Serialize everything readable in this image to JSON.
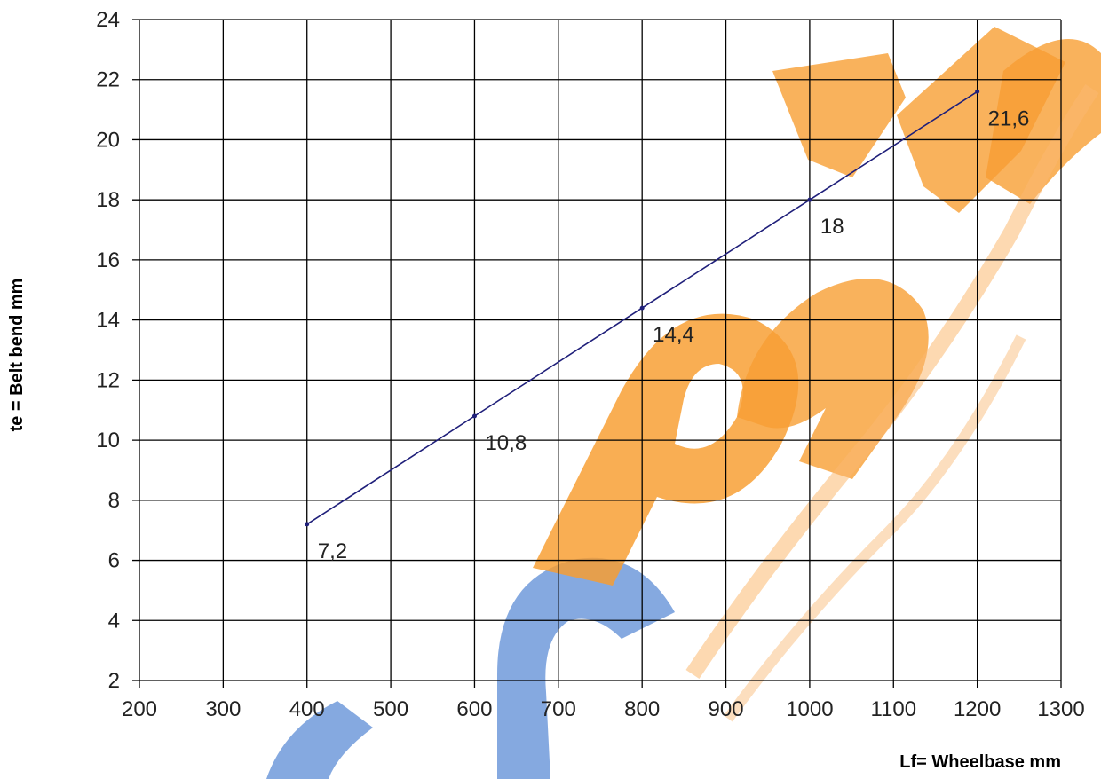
{
  "chart_data": {
    "type": "line",
    "title": "",
    "xlabel": "Lf= Wheelbase mm",
    "ylabel": "te = Belt bend mm",
    "xlim": [
      200,
      1300
    ],
    "ylim": [
      2,
      24
    ],
    "x_ticks": [
      "200",
      "300",
      "400",
      "500",
      "600",
      "700",
      "800",
      "900",
      "1000",
      "1100",
      "1200",
      "1300"
    ],
    "y_ticks": [
      "2",
      "4",
      "6",
      "8",
      "10",
      "12",
      "14",
      "16",
      "18",
      "20",
      "22",
      "24"
    ],
    "grid": true,
    "legend": "none",
    "series": [
      {
        "x": [
          400,
          600,
          800,
          1000,
          1200
        ],
        "y": [
          7.2,
          10.8,
          14.4,
          18,
          21.6
        ],
        "labels": [
          "7,2",
          "10,8",
          "14,4",
          "18",
          "21,6"
        ],
        "color": "#1f1f7a"
      }
    ]
  },
  "watermark": {
    "brand_color_orange": "#f7941d",
    "brand_color_blue": "#3a6fc4"
  }
}
